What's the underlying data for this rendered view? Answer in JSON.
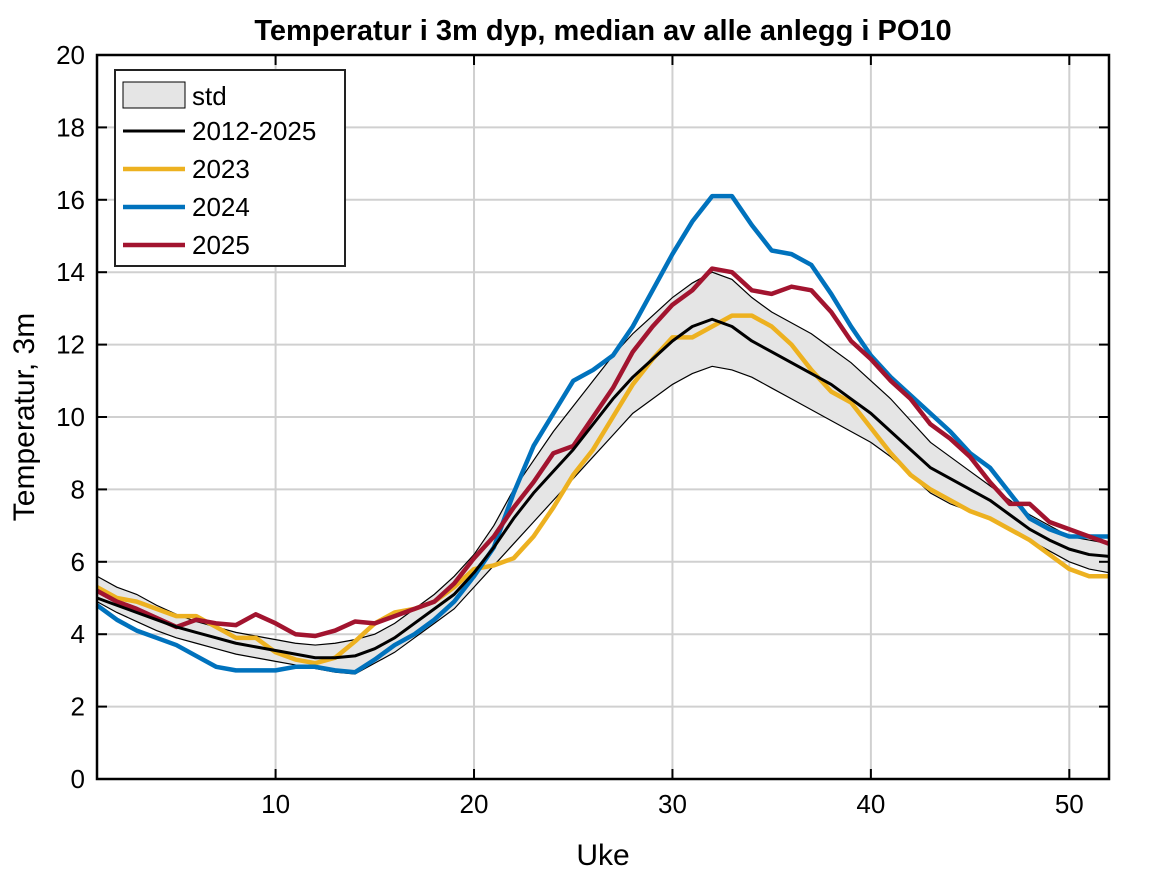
{
  "chart_data": {
    "type": "line",
    "title": "Temperatur i 3m dyp, median av alle anlegg i PO10",
    "xlabel": "Uke",
    "ylabel": "Temperatur, 3m",
    "xlim": [
      1,
      52
    ],
    "ylim": [
      0,
      20
    ],
    "xticks": [
      10,
      20,
      30,
      40,
      50
    ],
    "yticks": [
      0,
      2,
      4,
      6,
      8,
      10,
      12,
      14,
      16,
      18,
      20
    ],
    "grid": true,
    "legend_position": "top-left",
    "std_band": {
      "name": "std",
      "color": "#e5e5e5",
      "upper": [
        5.6,
        5.3,
        5.1,
        4.8,
        4.55,
        4.35,
        4.2,
        4.05,
        3.95,
        3.85,
        3.75,
        3.7,
        3.75,
        3.85,
        4.0,
        4.3,
        4.7,
        5.1,
        5.6,
        6.2,
        7.0,
        8.0,
        8.8,
        9.6,
        10.3,
        11.0,
        11.7,
        12.3,
        12.8,
        13.3,
        13.7,
        14.0,
        13.8,
        13.3,
        12.9,
        12.6,
        12.3,
        11.9,
        11.5,
        11.0,
        10.5,
        9.9,
        9.3,
        8.9,
        8.5,
        8.1,
        7.7,
        7.3,
        7.0,
        6.7,
        6.6,
        6.5
      ],
      "lower": [
        4.9,
        4.6,
        4.35,
        4.1,
        3.9,
        3.75,
        3.6,
        3.45,
        3.35,
        3.25,
        3.15,
        3.05,
        2.95,
        2.9,
        3.2,
        3.5,
        3.9,
        4.3,
        4.7,
        5.3,
        5.9,
        6.5,
        7.1,
        7.7,
        8.3,
        8.9,
        9.5,
        10.1,
        10.5,
        10.9,
        11.2,
        11.4,
        11.3,
        11.1,
        10.8,
        10.5,
        10.2,
        9.9,
        9.6,
        9.3,
        8.9,
        8.4,
        7.9,
        7.6,
        7.4,
        7.2,
        6.9,
        6.6,
        6.3,
        6.0,
        5.8,
        5.7
      ]
    },
    "series": [
      {
        "name": "2012-2025",
        "color": "#000000",
        "width": 3,
        "values": [
          5.0,
          4.8,
          4.6,
          4.4,
          4.2,
          4.05,
          3.9,
          3.75,
          3.65,
          3.55,
          3.45,
          3.35,
          3.35,
          3.4,
          3.6,
          3.9,
          4.3,
          4.7,
          5.1,
          5.7,
          6.4,
          7.2,
          7.9,
          8.5,
          9.1,
          9.8,
          10.5,
          11.1,
          11.6,
          12.1,
          12.5,
          12.7,
          12.5,
          12.1,
          11.8,
          11.5,
          11.2,
          10.9,
          10.5,
          10.1,
          9.6,
          9.1,
          8.6,
          8.3,
          8.0,
          7.7,
          7.3,
          6.9,
          6.6,
          6.35,
          6.2,
          6.15
        ]
      },
      {
        "name": "2023",
        "color": "#EDB120",
        "width": 4.5,
        "values": [
          5.3,
          5.0,
          4.9,
          4.7,
          4.5,
          4.5,
          4.2,
          3.9,
          3.9,
          3.5,
          3.3,
          3.2,
          3.35,
          3.8,
          4.3,
          4.6,
          4.7,
          4.9,
          5.3,
          5.8,
          5.9,
          6.1,
          6.7,
          7.5,
          8.4,
          9.1,
          10.0,
          10.9,
          11.6,
          12.2,
          12.2,
          12.5,
          12.8,
          12.8,
          12.5,
          12.0,
          11.3,
          10.7,
          10.4,
          9.7,
          9.0,
          8.4,
          8.0,
          7.7,
          7.4,
          7.2,
          6.9,
          6.6,
          6.2,
          5.8,
          5.6,
          5.6
        ]
      },
      {
        "name": "2024",
        "color": "#0072BD",
        "width": 4.5,
        "values": [
          4.8,
          4.4,
          4.1,
          3.9,
          3.7,
          3.4,
          3.1,
          3.0,
          3.0,
          3.0,
          3.1,
          3.1,
          3.0,
          2.95,
          3.3,
          3.7,
          4.0,
          4.4,
          4.9,
          5.6,
          6.4,
          7.9,
          9.2,
          10.1,
          11.0,
          11.3,
          11.7,
          12.5,
          13.5,
          14.5,
          15.4,
          16.1,
          16.1,
          15.3,
          14.6,
          14.5,
          14.2,
          13.4,
          12.5,
          11.7,
          11.1,
          10.6,
          10.1,
          9.6,
          9.0,
          8.6,
          7.9,
          7.2,
          6.9,
          6.7,
          6.7,
          6.7
        ]
      },
      {
        "name": "2025",
        "color": "#A2142F",
        "width": 4.5,
        "values": [
          5.2,
          4.9,
          4.7,
          4.45,
          4.2,
          4.4,
          4.3,
          4.25,
          4.55,
          4.3,
          4.0,
          3.95,
          4.1,
          4.35,
          4.3,
          4.5,
          4.7,
          4.9,
          5.4,
          6.1,
          6.7,
          7.5,
          8.2,
          9.0,
          9.2,
          10.0,
          10.8,
          11.8,
          12.5,
          13.1,
          13.5,
          14.1,
          14.0,
          13.5,
          13.4,
          13.6,
          13.5,
          12.9,
          12.1,
          11.6,
          11.0,
          10.5,
          9.8,
          9.4,
          8.9,
          8.2,
          7.6,
          7.6,
          7.1,
          6.9,
          6.7,
          6.5
        ]
      }
    ]
  }
}
